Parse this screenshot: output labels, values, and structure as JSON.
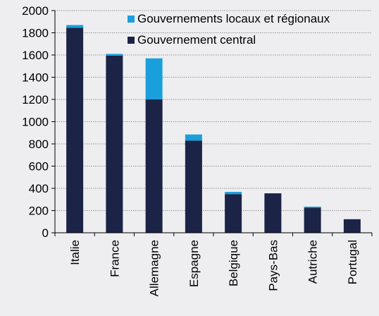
{
  "chart_data": {
    "type": "bar",
    "stacked": true,
    "title": "",
    "xlabel": "",
    "ylabel": "",
    "ylim": [
      0,
      2000
    ],
    "yticks": [
      0,
      200,
      400,
      600,
      800,
      1000,
      1200,
      1400,
      1600,
      1800,
      2000
    ],
    "grid": "horizontal dotted",
    "legend_position": "top-right",
    "categories": [
      "Italie",
      "France",
      "Allemagne",
      "Espagne",
      "Belgique",
      "Pays-Bas",
      "Autriche",
      "Portugal"
    ],
    "series": [
      {
        "name": "Gouvernement central",
        "color": "#1b2447",
        "values": [
          1845,
          1595,
          1200,
          830,
          348,
          355,
          225,
          122
        ]
      },
      {
        "name": "Gouvernements locaux et régionaux",
        "color": "#1a9fdd",
        "values": [
          25,
          15,
          370,
          55,
          20,
          0,
          10,
          0
        ]
      }
    ],
    "legend_order": [
      "Gouvernements locaux et régionaux",
      "Gouvernement central"
    ]
  }
}
